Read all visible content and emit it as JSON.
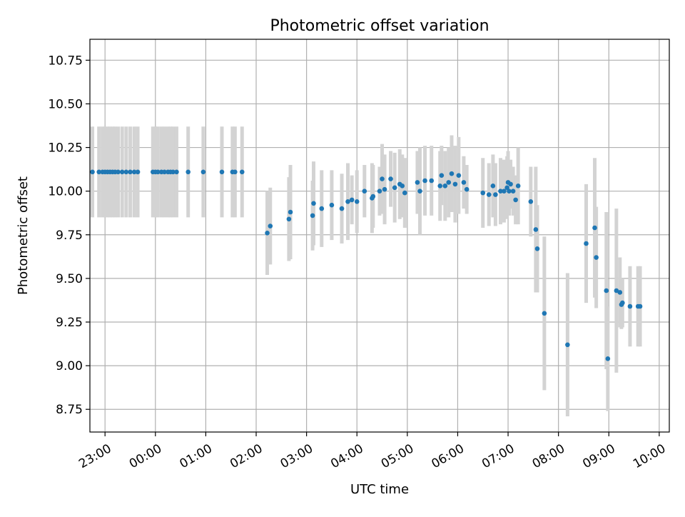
{
  "chart_data": {
    "type": "scatter",
    "title": "Photometric offset variation",
    "xlabel": "UTC time",
    "ylabel": "Photometric offset",
    "xlim": [
      -1.3,
      10.2
    ],
    "ylim": [
      8.62,
      10.87
    ],
    "grid": true,
    "x_unit": "hours relative to 00:00 UTC",
    "xticks": [
      {
        "value": -1,
        "label": "23:00"
      },
      {
        "value": 0,
        "label": "00:00"
      },
      {
        "value": 1,
        "label": "01:00"
      },
      {
        "value": 2,
        "label": "02:00"
      },
      {
        "value": 3,
        "label": "03:00"
      },
      {
        "value": 4,
        "label": "04:00"
      },
      {
        "value": 5,
        "label": "05:00"
      },
      {
        "value": 6,
        "label": "06:00"
      },
      {
        "value": 7,
        "label": "07:00"
      },
      {
        "value": 8,
        "label": "08:00"
      },
      {
        "value": 9,
        "label": "09:00"
      },
      {
        "value": 10,
        "label": "10:00"
      }
    ],
    "yticks": [
      {
        "value": 8.75,
        "label": "8.75"
      },
      {
        "value": 9.0,
        "label": "9.00"
      },
      {
        "value": 9.25,
        "label": "9.25"
      },
      {
        "value": 9.5,
        "label": "9.50"
      },
      {
        "value": 9.75,
        "label": "9.75"
      },
      {
        "value": 10.0,
        "label": "10.00"
      },
      {
        "value": 10.25,
        "label": "10.25"
      },
      {
        "value": 10.5,
        "label": "10.50"
      },
      {
        "value": 10.75,
        "label": "10.75"
      }
    ],
    "marker_color": "#1f77b4",
    "errorbar_color": "#d3d3d3",
    "series": [
      {
        "name": "offset",
        "x": [
          -1.25,
          -1.12,
          -1.05,
          -1.0,
          -0.95,
          -0.9,
          -0.85,
          -0.8,
          -0.74,
          -0.66,
          -0.58,
          -0.5,
          -0.42,
          -0.35,
          -0.05,
          0.0,
          0.05,
          0.12,
          0.18,
          0.25,
          0.3,
          0.35,
          0.42,
          0.65,
          0.95,
          1.32,
          1.53,
          1.58,
          1.72,
          2.22,
          2.28,
          2.65,
          2.68,
          3.12,
          3.14,
          3.3,
          3.5,
          3.7,
          3.82,
          3.9,
          4.0,
          4.15,
          4.3,
          4.32,
          4.45,
          4.5,
          4.55,
          4.67,
          4.75,
          4.85,
          4.9,
          4.95,
          5.2,
          5.25,
          5.35,
          5.48,
          5.65,
          5.68,
          5.75,
          5.82,
          5.88,
          5.95,
          6.02,
          6.12,
          6.18,
          6.5,
          6.62,
          6.7,
          6.75,
          6.85,
          6.92,
          6.98,
          7.0,
          7.02,
          7.05,
          7.1,
          7.15,
          7.2,
          7.45,
          7.55,
          7.58,
          7.72,
          8.18,
          8.55,
          8.72,
          8.75,
          8.95,
          8.98,
          9.15,
          9.22,
          9.25,
          9.27,
          9.42,
          9.58,
          9.62
        ],
        "y": [
          10.11,
          10.11,
          10.11,
          10.11,
          10.11,
          10.11,
          10.11,
          10.11,
          10.11,
          10.11,
          10.11,
          10.11,
          10.11,
          10.11,
          10.11,
          10.11,
          10.11,
          10.11,
          10.11,
          10.11,
          10.11,
          10.11,
          10.11,
          10.11,
          10.11,
          10.11,
          10.11,
          10.11,
          10.11,
          9.76,
          9.8,
          9.84,
          9.88,
          9.86,
          9.93,
          9.9,
          9.92,
          9.9,
          9.94,
          9.95,
          9.94,
          10.0,
          9.96,
          9.97,
          10.0,
          10.07,
          10.01,
          10.07,
          10.02,
          10.04,
          10.03,
          9.99,
          10.05,
          10.0,
          10.06,
          10.06,
          10.03,
          10.09,
          10.03,
          10.05,
          10.1,
          10.04,
          10.09,
          10.05,
          10.01,
          9.99,
          9.98,
          10.03,
          9.98,
          10.0,
          10.0,
          10.02,
          10.05,
          10.0,
          10.04,
          10.0,
          9.95,
          10.03,
          9.94,
          9.78,
          9.67,
          9.3,
          9.12,
          9.7,
          9.79,
          9.62,
          9.43,
          9.04,
          9.43,
          9.42,
          9.35,
          9.36,
          9.34,
          9.34,
          9.34
        ],
        "err": [
          0.26,
          0.26,
          0.26,
          0.26,
          0.26,
          0.26,
          0.26,
          0.26,
          0.26,
          0.26,
          0.26,
          0.26,
          0.26,
          0.26,
          0.26,
          0.26,
          0.26,
          0.26,
          0.26,
          0.26,
          0.26,
          0.26,
          0.26,
          0.26,
          0.26,
          0.26,
          0.26,
          0.26,
          0.26,
          0.24,
          0.22,
          0.24,
          0.27,
          0.2,
          0.24,
          0.22,
          0.2,
          0.2,
          0.22,
          0.14,
          0.18,
          0.15,
          0.2,
          0.18,
          0.14,
          0.2,
          0.2,
          0.16,
          0.2,
          0.2,
          0.18,
          0.2,
          0.18,
          0.25,
          0.2,
          0.2,
          0.2,
          0.17,
          0.2,
          0.2,
          0.22,
          0.22,
          0.22,
          0.15,
          0.14,
          0.2,
          0.18,
          0.18,
          0.18,
          0.19,
          0.18,
          0.18,
          0.18,
          0.14,
          0.14,
          0.14,
          0.14,
          0.22,
          0.2,
          0.36,
          0.25,
          0.44,
          0.41,
          0.34,
          0.4,
          0.29,
          0.45,
          0.3,
          0.47,
          0.2,
          0.14,
          0.14,
          0.23,
          0.23,
          0.23
        ]
      }
    ]
  }
}
